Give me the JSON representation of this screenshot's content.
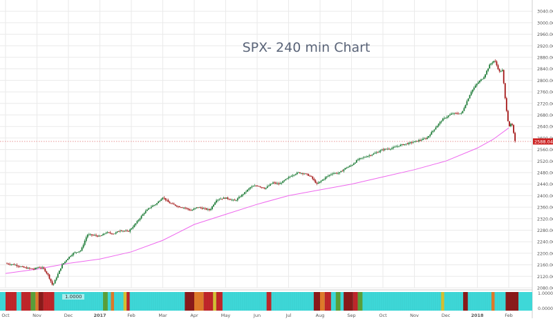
{
  "chart_data": {
    "type": "line",
    "title": "SPX- 240 min Chart",
    "xlabel": "",
    "ylabel": "",
    "ylim": [
      2060,
      3040
    ],
    "y_ticks": [
      2080,
      2120,
      2160,
      2200,
      2240,
      2280,
      2320,
      2360,
      2400,
      2440,
      2480,
      2520,
      2560,
      2600,
      2640,
      2680,
      2720,
      2760,
      2800,
      2840,
      2880,
      2920,
      2960,
      3000,
      3040
    ],
    "y_tick_labels": [
      "2080.00",
      "2120.00",
      "2160.00",
      "2200.00",
      "2240.00",
      "2280.00",
      "2320.00",
      "2360.00",
      "2400.00",
      "2440.00",
      "2480.00",
      "2520.00",
      "2560.00",
      "2600.00",
      "2640.00",
      "2680.00",
      "2720.00",
      "2760.00",
      "2800.00",
      "2840.00",
      "2880.00",
      "2920.00",
      "2960.00",
      "3000.00",
      "3040.00"
    ],
    "x_tick_labels": [
      "Oct",
      "Nov",
      "Dec",
      "2017",
      "Feb",
      "Mar",
      "Apr",
      "May",
      "Jun",
      "Jul",
      "Aug",
      "Sep",
      "Oct",
      "Nov",
      "Dec",
      "2018",
      "Feb"
    ],
    "x_tick_months": [
      0,
      1,
      2,
      3,
      4,
      5,
      6,
      7,
      8,
      9,
      10,
      11,
      12,
      13,
      14,
      15,
      16
    ],
    "bold_tick_labels": [
      "2017",
      "2018"
    ],
    "current_price": 2588.04,
    "current_price_label": "2588.04",
    "grid": true,
    "series": [
      {
        "kind": "price",
        "color_up": "#1b7a35",
        "color_down": "#a31515",
        "x_months": [
          0.0,
          0.3,
          0.6,
          0.9,
          1.05,
          1.2,
          1.35,
          1.5,
          1.8,
          2.0,
          2.15,
          2.4,
          2.6,
          2.85,
          3.0,
          3.2,
          3.45,
          3.65,
          3.9,
          4.1,
          4.4,
          4.6,
          4.8,
          5.0,
          5.2,
          5.5,
          5.7,
          5.9,
          6.1,
          6.3,
          6.5,
          6.7,
          6.85,
          7.0,
          7.3,
          7.6,
          7.8,
          8.0,
          8.25,
          8.5,
          8.7,
          8.9,
          9.1,
          9.3,
          9.5,
          9.7,
          9.9,
          10.2,
          10.4,
          10.6,
          10.8,
          11.0,
          11.2,
          11.45,
          11.7,
          12.0,
          12.3,
          12.55,
          12.8,
          13.1,
          13.4,
          13.7,
          13.9,
          14.2,
          14.5,
          14.8,
          15.0,
          15.2,
          15.4,
          15.55,
          15.7,
          15.8,
          15.9,
          16.0,
          16.1,
          16.2
        ],
        "values": [
          2165,
          2160,
          2150,
          2145,
          2152,
          2148,
          2125,
          2088,
          2160,
          2185,
          2200,
          2210,
          2265,
          2262,
          2258,
          2272,
          2268,
          2280,
          2275,
          2298,
          2340,
          2360,
          2372,
          2395,
          2375,
          2362,
          2358,
          2348,
          2360,
          2355,
          2350,
          2385,
          2390,
          2392,
          2382,
          2410,
          2430,
          2435,
          2425,
          2445,
          2440,
          2455,
          2470,
          2480,
          2477,
          2467,
          2440,
          2465,
          2478,
          2478,
          2495,
          2505,
          2525,
          2535,
          2545,
          2560,
          2565,
          2575,
          2581,
          2590,
          2600,
          2640,
          2665,
          2685,
          2685,
          2760,
          2790,
          2810,
          2855,
          2870,
          2830,
          2835,
          2720,
          2640,
          2650,
          2588
        ]
      },
      {
        "kind": "moving-average",
        "color": "#ee66ee",
        "x_months": [
          0.0,
          1.0,
          2.0,
          3.0,
          4.0,
          5.0,
          6.0,
          7.0,
          8.0,
          9.0,
          10.0,
          11.0,
          12.0,
          13.0,
          14.0,
          15.0,
          15.5,
          16.0
        ],
        "values": [
          2130,
          2145,
          2165,
          2180,
          2205,
          2245,
          2300,
          2335,
          2370,
          2400,
          2420,
          2440,
          2465,
          2490,
          2520,
          2565,
          2595,
          2635
        ]
      }
    ],
    "indicator": {
      "label": "1.0000",
      "scale_labels": [
        "1.0000",
        "0.0000"
      ],
      "colors": {
        "cyan": "#3ed8d8",
        "red": "#c0262a",
        "dark_red": "#8b1a1a",
        "orange": "#e07a2a",
        "green": "#5aa03a",
        "yellow": "#d8c030"
      },
      "bands": [
        {
          "start": 0.0,
          "end": 0.35,
          "color": "red"
        },
        {
          "start": 0.35,
          "end": 0.5,
          "color": "cyan"
        },
        {
          "start": 0.5,
          "end": 0.8,
          "color": "red"
        },
        {
          "start": 0.8,
          "end": 0.95,
          "color": "green"
        },
        {
          "start": 0.95,
          "end": 1.05,
          "color": "orange"
        },
        {
          "start": 1.05,
          "end": 1.2,
          "color": "dark_red"
        },
        {
          "start": 1.2,
          "end": 1.55,
          "color": "red"
        },
        {
          "start": 1.55,
          "end": 3.1,
          "color": "cyan"
        },
        {
          "start": 3.1,
          "end": 3.25,
          "color": "green"
        },
        {
          "start": 3.25,
          "end": 3.35,
          "color": "cyan"
        },
        {
          "start": 3.35,
          "end": 3.45,
          "color": "orange"
        },
        {
          "start": 3.45,
          "end": 3.75,
          "color": "cyan"
        },
        {
          "start": 3.75,
          "end": 3.85,
          "color": "yellow"
        },
        {
          "start": 3.85,
          "end": 3.95,
          "color": "red"
        },
        {
          "start": 3.95,
          "end": 5.7,
          "color": "cyan"
        },
        {
          "start": 5.7,
          "end": 6.0,
          "color": "dark_red"
        },
        {
          "start": 6.0,
          "end": 6.3,
          "color": "orange"
        },
        {
          "start": 6.3,
          "end": 6.6,
          "color": "red"
        },
        {
          "start": 6.6,
          "end": 6.7,
          "color": "yellow"
        },
        {
          "start": 6.7,
          "end": 6.9,
          "color": "red"
        },
        {
          "start": 6.9,
          "end": 8.3,
          "color": "cyan"
        },
        {
          "start": 8.3,
          "end": 8.45,
          "color": "red"
        },
        {
          "start": 8.45,
          "end": 9.8,
          "color": "cyan"
        },
        {
          "start": 9.8,
          "end": 10.0,
          "color": "dark_red"
        },
        {
          "start": 10.0,
          "end": 10.15,
          "color": "orange"
        },
        {
          "start": 10.15,
          "end": 10.35,
          "color": "red"
        },
        {
          "start": 10.35,
          "end": 10.5,
          "color": "cyan"
        },
        {
          "start": 10.5,
          "end": 10.65,
          "color": "green"
        },
        {
          "start": 10.65,
          "end": 10.75,
          "color": "cyan"
        },
        {
          "start": 10.75,
          "end": 11.05,
          "color": "dark_red"
        },
        {
          "start": 11.05,
          "end": 11.2,
          "color": "red"
        },
        {
          "start": 11.2,
          "end": 11.35,
          "color": "green"
        },
        {
          "start": 11.35,
          "end": 13.85,
          "color": "cyan"
        },
        {
          "start": 13.85,
          "end": 13.95,
          "color": "yellow"
        },
        {
          "start": 13.95,
          "end": 14.55,
          "color": "cyan"
        },
        {
          "start": 14.55,
          "end": 14.7,
          "color": "dark_red"
        },
        {
          "start": 14.7,
          "end": 15.45,
          "color": "cyan"
        },
        {
          "start": 15.45,
          "end": 15.55,
          "color": "orange"
        },
        {
          "start": 15.55,
          "end": 15.9,
          "color": "cyan"
        },
        {
          "start": 15.9,
          "end": 16.35,
          "color": "dark_red"
        }
      ]
    },
    "colors": {
      "grid": "#eaeaea",
      "axis_text": "#555555",
      "title": "#5a6478",
      "price_tag": "#cc2222",
      "price_tag_text": "#ffffff",
      "current_line": "#e07070"
    }
  }
}
